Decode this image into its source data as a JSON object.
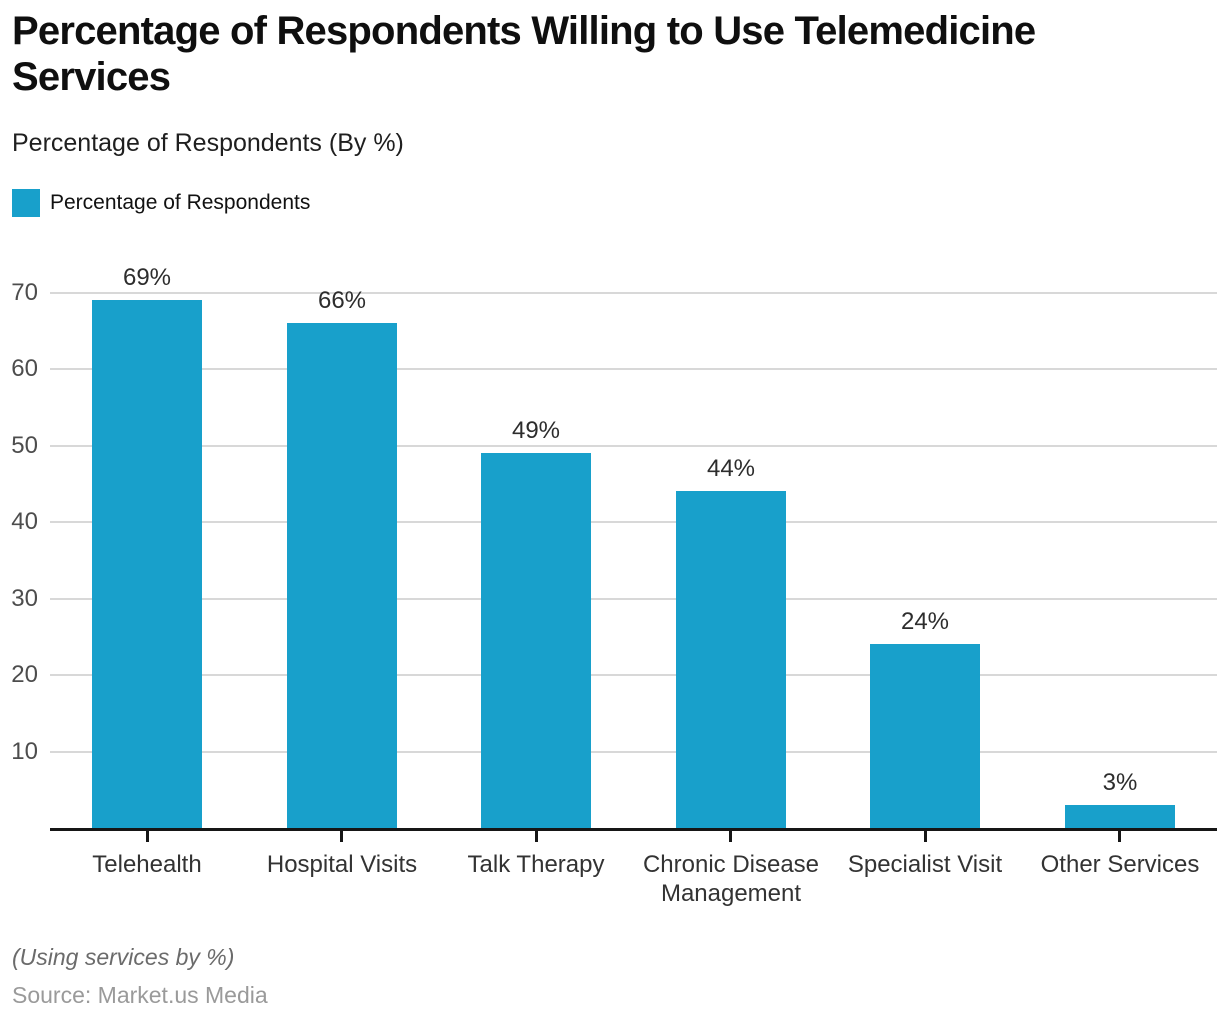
{
  "header": {
    "title": "Percentage of Respondents Willing to Use Telemedicine Services",
    "subtitle": "Percentage of Respondents (By %)",
    "legend_label": "Percentage of Respondents"
  },
  "chart_data": {
    "type": "bar",
    "title": "Percentage of Respondents Willing to Use Telemedicine Services",
    "subtitle": "Percentage of Respondents (By %)",
    "legend": [
      "Percentage of Respondents"
    ],
    "legend_position": "top-left",
    "categories": [
      "Telehealth",
      "Hospital Visits",
      "Talk Therapy",
      "Chronic Disease Management",
      "Specialist Visit",
      "Other Services"
    ],
    "values": [
      69,
      66,
      49,
      44,
      24,
      3
    ],
    "value_labels": [
      "69%",
      "66%",
      "49%",
      "44%",
      "24%",
      "3%"
    ],
    "xlabel": "",
    "ylabel": "",
    "y_ticks": [
      10,
      20,
      30,
      40,
      50,
      60,
      70
    ],
    "ylim": [
      0,
      77
    ],
    "grid": "horizontal-only"
  },
  "colors": {
    "accent_bar": "#18A0CB",
    "gridline": "#D8D8D8",
    "axis_line": "#161616"
  },
  "footer": {
    "note": "(Using services by %)",
    "source": "Source: Market.us Media"
  }
}
